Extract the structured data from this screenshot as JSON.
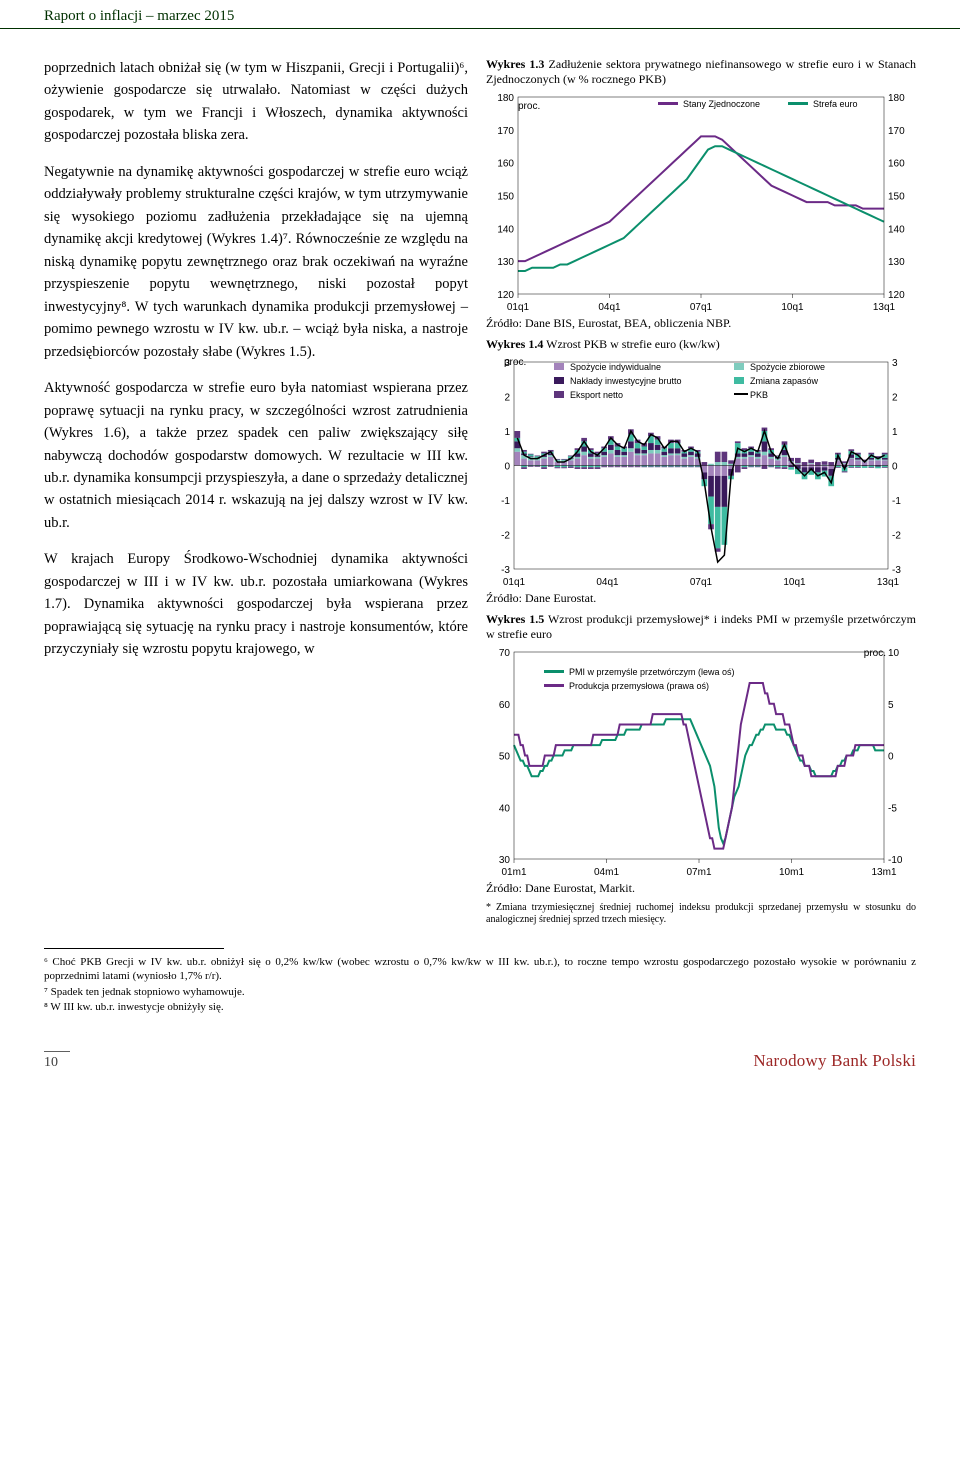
{
  "header": "Raport o inflacji – marzec 2015",
  "left": {
    "p1": "poprzednich latach obniżał się (w tym w Hiszpanii, Grecji i Portugalii)⁶, ożywienie gospodarcze się utrwalało. Natomiast w części dużych gospodarek, w tym we Francji i Włoszech, dynamika aktywności gospodarczej pozostała bliska zera.",
    "p2": "Negatywnie na dynamikę aktywności gospodarczej w strefie euro wciąż oddziaływały problemy strukturalne części krajów, w tym utrzymywanie się wysokiego poziomu zadłużenia przekładające się na ujemną dynamikę akcji kredytowej (Wykres 1.4)⁷. Równocześnie ze względu na niską dynamikę popytu zewnętrznego oraz brak oczekiwań na wyraźne przyspieszenie popytu wewnętrznego, niski pozostał popyt inwestycyjny⁸. W tych warunkach dynamika produkcji przemysłowej – pomimo pewnego wzrostu w IV kw. ub.r. – wciąż była niska, a nastroje przedsiębiorców pozostały słabe (Wykres 1.5).",
    "p3": "Aktywność gospodarcza w strefie euro była natomiast wspierana przez poprawę sytuacji na rynku pracy, w szczególności wzrost zatrudnienia (Wykres 1.6), a także przez spadek cen paliw zwiększający siłę nabywczą dochodów gospodarstw domowych. W rezultacie w III kw. ub.r. dynamika konsumpcji przyspieszyła, a dane o sprzedaży detalicznej w ostatnich miesiącach 2014 r. wskazują na jej dalszy wzrost w IV kw. ub.r.",
    "p4": "W krajach Europy Środkowo-Wschodniej dynamika aktywności gospodarczej w III i w IV kw. ub.r. pozostała umiarkowana (Wykres 1.7). Dynamika aktywności gospodarczej była wspierana przez poprawiającą się sytuację na rynku pracy i nastroje konsumentów, które przyczyniały się wzrostu popytu krajowego, w"
  },
  "chart13": {
    "caption_bold": "Wykres 1.3",
    "caption_rest": " Zadłużenie sektora prywatnego niefinansowego w strefie euro i w Stanach Zjednoczonych (w % rocznego PKB)",
    "unit_label": "proc.",
    "legend": [
      "Stany Zjednoczone",
      "Strefa euro"
    ],
    "colors": [
      "#6b2a86",
      "#0b8f6c"
    ],
    "ymin": 120,
    "ymax": 180,
    "ystep": 10,
    "xlabels": [
      "01q1",
      "04q1",
      "07q1",
      "10q1",
      "13q1"
    ],
    "n": 53,
    "series": {
      "us": [
        130,
        130,
        131,
        132,
        133,
        134,
        135,
        136,
        137,
        138,
        139,
        140,
        141,
        142,
        144,
        146,
        148,
        150,
        152,
        154,
        156,
        158,
        160,
        162,
        164,
        166,
        168,
        168,
        168,
        167,
        165,
        163,
        161,
        159,
        157,
        155,
        153,
        152,
        151,
        150,
        149,
        148,
        148,
        148,
        148,
        147,
        147,
        147,
        147,
        146,
        146,
        146,
        146
      ],
      "ez": [
        127,
        127,
        128,
        128,
        128,
        128,
        129,
        129,
        130,
        131,
        132,
        133,
        134,
        135,
        136,
        137,
        139,
        141,
        143,
        145,
        147,
        149,
        151,
        153,
        155,
        158,
        161,
        164,
        165,
        165,
        164,
        163,
        162,
        161,
        160,
        159,
        158,
        157,
        156,
        155,
        154,
        153,
        152,
        151,
        150,
        149,
        148,
        147,
        146,
        145,
        144,
        143,
        142
      ]
    },
    "source": "Źródło: Dane BIS, Eurostat, BEA, obliczenia NBP."
  },
  "chart14": {
    "caption_bold": "Wykres 1.4",
    "caption_rest": " Wzrost PKB w strefie euro (kw/kw)",
    "unit_label": "proc.",
    "legend": [
      "Spożycie indywidualne",
      "Spożycie zbiorowe",
      "Nakłady inwestycyjne brutto",
      "Zmiana zapasów",
      "Eksport netto",
      "PKB"
    ],
    "legend_colors": [
      "#a383bb",
      "#7fccbe",
      "#3a1a5c",
      "#3fbba1",
      "#5e357c",
      "#000000"
    ],
    "ymin": -3,
    "ymax": 3,
    "ystep": 1,
    "xlabels": [
      "01q1",
      "04q1",
      "07q1",
      "10q1",
      "13q1"
    ],
    "n": 56,
    "line": [
      0.8,
      0.3,
      0.2,
      0.2,
      0.3,
      0.4,
      0.1,
      0.1,
      0.2,
      0.4,
      0.7,
      0.4,
      0.3,
      0.5,
      0.8,
      0.6,
      0.5,
      1.0,
      0.7,
      0.6,
      0.9,
      0.8,
      0.5,
      0.7,
      0.7,
      0.4,
      0.5,
      0.4,
      -0.5,
      -1.8,
      -2.8,
      -2.6,
      -0.3,
      0.5,
      0.4,
      0.5,
      0.4,
      1.0,
      0.4,
      0.2,
      0.6,
      0.1,
      -0.1,
      -0.3,
      -0.1,
      -0.3,
      -0.2,
      -0.5,
      0.3,
      -0.1,
      0.4,
      0.3,
      0.1,
      0.3,
      0.2,
      0.3
    ],
    "stacks_pos": [
      [
        0.4,
        0.1,
        0.2,
        0.1,
        0.2
      ],
      [
        0.2,
        0.1,
        0.05,
        0.05,
        0.05
      ],
      [
        0.15,
        0.1,
        0.02,
        0.05,
        0.02
      ],
      [
        0.15,
        0.05,
        0.02,
        0.05,
        0.02
      ],
      [
        0.2,
        0.05,
        0.05,
        0.05,
        0.05
      ],
      [
        0.25,
        0.05,
        0.05,
        0.05,
        0.05
      ],
      [
        0.1,
        0.05,
        0.0,
        0.02,
        0.02
      ],
      [
        0.1,
        0.05,
        0.0,
        0.02,
        0.02
      ],
      [
        0.15,
        0.05,
        0.02,
        0.05,
        0.02
      ],
      [
        0.2,
        0.05,
        0.1,
        0.1,
        0.05
      ],
      [
        0.3,
        0.1,
        0.15,
        0.15,
        0.1
      ],
      [
        0.2,
        0.05,
        0.1,
        0.1,
        0.05
      ],
      [
        0.2,
        0.05,
        0.05,
        0.05,
        0.05
      ],
      [
        0.25,
        0.05,
        0.1,
        0.1,
        0.05
      ],
      [
        0.35,
        0.1,
        0.15,
        0.15,
        0.1
      ],
      [
        0.25,
        0.05,
        0.15,
        0.1,
        0.1
      ],
      [
        0.25,
        0.05,
        0.1,
        0.1,
        0.05
      ],
      [
        0.4,
        0.1,
        0.2,
        0.2,
        0.15
      ],
      [
        0.3,
        0.05,
        0.15,
        0.15,
        0.1
      ],
      [
        0.3,
        0.05,
        0.1,
        0.1,
        0.1
      ],
      [
        0.35,
        0.1,
        0.2,
        0.2,
        0.1
      ],
      [
        0.35,
        0.1,
        0.15,
        0.15,
        0.1
      ],
      [
        0.25,
        0.05,
        0.1,
        0.1,
        0.05
      ],
      [
        0.3,
        0.05,
        0.15,
        0.15,
        0.1
      ],
      [
        0.3,
        0.05,
        0.15,
        0.15,
        0.1
      ],
      [
        0.2,
        0.05,
        0.1,
        0.05,
        0.05
      ],
      [
        0.25,
        0.05,
        0.1,
        0.1,
        0.05
      ],
      [
        0.2,
        0.05,
        0.1,
        0.05,
        0.05
      ],
      [
        0.0,
        0.0,
        0.0,
        0.0,
        0.1
      ],
      [
        0.0,
        0.05,
        0.0,
        0.0,
        0.0
      ],
      [
        0.0,
        0.1,
        0.0,
        0.0,
        0.3
      ],
      [
        0.0,
        0.1,
        0.0,
        0.0,
        0.3
      ],
      [
        0.0,
        0.05,
        0.0,
        0.0,
        0.1
      ],
      [
        0.2,
        0.05,
        0.1,
        0.3,
        0.05
      ],
      [
        0.2,
        0.05,
        0.1,
        0.1,
        0.05
      ],
      [
        0.25,
        0.05,
        0.1,
        0.1,
        0.05
      ],
      [
        0.2,
        0.05,
        0.1,
        0.05,
        0.05
      ],
      [
        0.3,
        0.1,
        0.3,
        0.3,
        0.1
      ],
      [
        0.2,
        0.05,
        0.1,
        0.1,
        0.05
      ],
      [
        0.15,
        0.05,
        0.05,
        0.02,
        0.02
      ],
      [
        0.25,
        0.05,
        0.15,
        0.15,
        0.1
      ],
      [
        0.1,
        0.02,
        0.0,
        0.0,
        0.1
      ],
      [
        0.05,
        0.02,
        0.0,
        0.0,
        0.15
      ],
      [
        0.0,
        0.0,
        0.0,
        0.0,
        0.1
      ],
      [
        0.05,
        0.02,
        0.0,
        0.0,
        0.1
      ],
      [
        0.0,
        0.0,
        0.0,
        0.0,
        0.1
      ],
      [
        0.0,
        0.02,
        0.0,
        0.0,
        0.1
      ],
      [
        0.0,
        0.0,
        0.0,
        0.0,
        0.1
      ],
      [
        0.15,
        0.02,
        0.05,
        0.1,
        0.05
      ],
      [
        0.05,
        0.02,
        0.0,
        0.0,
        0.05
      ],
      [
        0.2,
        0.02,
        0.1,
        0.1,
        0.05
      ],
      [
        0.15,
        0.02,
        0.05,
        0.1,
        0.05
      ],
      [
        0.1,
        0.02,
        0.0,
        0.0,
        0.05
      ],
      [
        0.15,
        0.02,
        0.05,
        0.1,
        0.05
      ],
      [
        0.15,
        0.02,
        0.0,
        0.05,
        0.05
      ],
      [
        0.15,
        0.02,
        0.05,
        0.1,
        0.05
      ]
    ],
    "stacks_neg": [
      [
        0,
        0,
        0,
        0,
        0
      ],
      [
        0,
        0,
        0,
        0.05,
        0.05
      ],
      [
        0,
        0,
        0,
        0.02,
        0.02
      ],
      [
        0,
        0,
        0,
        0.02,
        0.02
      ],
      [
        0,
        0,
        0,
        0.05,
        0.05
      ],
      [
        0,
        0,
        0,
        0.02,
        0.02
      ],
      [
        0,
        0,
        0,
        0.05,
        0.03
      ],
      [
        0,
        0,
        0,
        0.05,
        0.03
      ],
      [
        0,
        0,
        0,
        0.03,
        0.04
      ],
      [
        0,
        0,
        0,
        0.05,
        0.05
      ],
      [
        0,
        0,
        0,
        0.05,
        0.05
      ],
      [
        0,
        0,
        0,
        0.05,
        0.05
      ],
      [
        0,
        0,
        0,
        0.05,
        0.05
      ],
      [
        0,
        0,
        0,
        0.02,
        0.03
      ],
      [
        0,
        0,
        0,
        0.02,
        0.03
      ],
      [
        0,
        0,
        0,
        0.02,
        0.03
      ],
      [
        0,
        0,
        0,
        0.02,
        0.03
      ],
      [
        0,
        0,
        0,
        0.02,
        0.03
      ],
      [
        0,
        0,
        0,
        0.02,
        0.03
      ],
      [
        0,
        0,
        0,
        0.03,
        0.02
      ],
      [
        0,
        0,
        0,
        0.03,
        0.02
      ],
      [
        0,
        0,
        0,
        0.03,
        0.02
      ],
      [
        0,
        0,
        0,
        0.03,
        0.02
      ],
      [
        0,
        0,
        0,
        0.03,
        0.02
      ],
      [
        0,
        0,
        0,
        0.03,
        0.02
      ],
      [
        0,
        0,
        0,
        0.03,
        0.02
      ],
      [
        0,
        0,
        0,
        0.03,
        0.02
      ],
      [
        0,
        0,
        0,
        0.03,
        0.02
      ],
      [
        0.2,
        0,
        0.2,
        0.2,
        0
      ],
      [
        0.3,
        0,
        0.6,
        0.8,
        0.15
      ],
      [
        0.3,
        0,
        0.9,
        1.2,
        0.1
      ],
      [
        0.3,
        0,
        0.9,
        1.1,
        0
      ],
      [
        0.1,
        0,
        0.2,
        0.1,
        0
      ],
      [
        0,
        0,
        0,
        0,
        0.2
      ],
      [
        0,
        0,
        0,
        0.05,
        0.05
      ],
      [
        0,
        0,
        0,
        0.03,
        0.02
      ],
      [
        0,
        0,
        0,
        0.03,
        0.02
      ],
      [
        0,
        0,
        0,
        0,
        0.1
      ],
      [
        0,
        0,
        0,
        0.03,
        0.02
      ],
      [
        0,
        0,
        0,
        0.05,
        0.04
      ],
      [
        0,
        0,
        0,
        0.05,
        0.05
      ],
      [
        0,
        0,
        0.05,
        0.07,
        0
      ],
      [
        0,
        0,
        0.1,
        0.15,
        0
      ],
      [
        0.05,
        0,
        0.15,
        0.2,
        0
      ],
      [
        0.05,
        0,
        0.1,
        0.12,
        0
      ],
      [
        0.05,
        0,
        0.15,
        0.2,
        0
      ],
      [
        0.05,
        0,
        0.1,
        0.17,
        0
      ],
      [
        0.1,
        0,
        0.2,
        0.3,
        0
      ],
      [
        0,
        0,
        0,
        0.05,
        0.02
      ],
      [
        0,
        0,
        0.05,
        0.12,
        0.03
      ],
      [
        0,
        0,
        0,
        0.05,
        0.02
      ],
      [
        0,
        0,
        0,
        0.05,
        0.02
      ],
      [
        0,
        0,
        0.02,
        0.05,
        0
      ],
      [
        0,
        0,
        0,
        0.05,
        0.02
      ],
      [
        0,
        0,
        0.03,
        0.05,
        0
      ],
      [
        0,
        0,
        0,
        0.05,
        0.02
      ]
    ],
    "source": "Źródło: Dane Eurostat."
  },
  "chart15": {
    "caption_bold": "Wykres 1.5",
    "caption_rest": " Wzrost produkcji przemysłowej* i indeks PMI w przemyśle przetwórczym w strefie euro",
    "unit_label": "proc.",
    "legend": [
      "PMI w przemyśle przetwórczym (lewa oś)",
      "Produkcja przemysłowa (prawa oś)"
    ],
    "colors": [
      "#0b8f6c",
      "#6b2a86"
    ],
    "leftmin": 30,
    "leftmax": 70,
    "leftstep": 10,
    "rightmin": -10,
    "rightmax": 10,
    "rightstep": 5,
    "xlabels": [
      "01m1",
      "04m1",
      "07m1",
      "10m1",
      "13m1"
    ],
    "n": 169,
    "pmi": [
      52,
      51,
      50,
      49,
      49,
      48,
      48,
      47,
      46,
      46,
      46,
      46,
      47,
      47,
      48,
      48,
      49,
      49,
      50,
      50,
      50,
      50,
      50,
      51,
      51,
      51,
      51,
      52,
      52,
      52,
      52,
      52,
      52,
      52,
      52,
      52,
      52,
      52,
      52,
      52,
      53,
      53,
      53,
      53,
      53,
      53,
      53,
      54,
      54,
      54,
      54,
      55,
      55,
      55,
      55,
      55,
      55,
      55,
      56,
      56,
      56,
      56,
      56,
      56,
      56,
      56,
      56,
      56,
      56,
      57,
      57,
      57,
      57,
      57,
      57,
      57,
      57,
      57,
      57,
      57,
      57,
      56,
      55,
      54,
      53,
      52,
      51,
      50,
      49,
      48,
      46,
      44,
      40,
      36,
      34,
      33,
      34,
      36,
      38,
      40,
      42,
      43,
      44,
      46,
      48,
      50,
      51,
      52,
      52,
      53,
      54,
      54,
      55,
      55,
      56,
      56,
      56,
      56,
      56,
      55,
      55,
      55,
      55,
      55,
      54,
      54,
      53,
      52,
      51,
      50,
      49,
      49,
      48,
      48,
      48,
      47,
      47,
      46,
      46,
      46,
      46,
      46,
      46,
      46,
      46,
      47,
      47,
      48,
      48,
      49,
      49,
      50,
      50,
      50,
      51,
      51,
      51,
      52,
      52,
      52,
      52,
      52,
      52,
      52,
      51,
      51,
      51,
      51,
      51
    ],
    "prod": [
      2,
      2,
      2,
      1,
      1,
      0,
      0,
      -1,
      -1,
      -1,
      -1,
      -1,
      -1,
      -1,
      0,
      0,
      0,
      0,
      0,
      1,
      1,
      1,
      1,
      1,
      1,
      1,
      1,
      1,
      1,
      1,
      1,
      1,
      1,
      1,
      1,
      1,
      2,
      2,
      2,
      2,
      2,
      2,
      2,
      2,
      2,
      2,
      2,
      2,
      3,
      3,
      3,
      3,
      3,
      3,
      3,
      3,
      3,
      3,
      3,
      3,
      3,
      3,
      3,
      4,
      4,
      4,
      4,
      4,
      4,
      4,
      4,
      4,
      4,
      4,
      4,
      4,
      4,
      3,
      3,
      2,
      1,
      0,
      -1,
      -2,
      -3,
      -4,
      -5,
      -6,
      -7,
      -8,
      -8,
      -9,
      -9,
      -9,
      -9,
      -9,
      -8,
      -7,
      -6,
      -5,
      -3,
      -1,
      1,
      3,
      4,
      5,
      6,
      7,
      7,
      7,
      7,
      7,
      7,
      7,
      6,
      6,
      5,
      5,
      5,
      4,
      4,
      4,
      4,
      3,
      3,
      3,
      2,
      1,
      1,
      0,
      0,
      0,
      -1,
      -1,
      -1,
      -2,
      -2,
      -2,
      -2,
      -2,
      -2,
      -2,
      -2,
      -2,
      -2,
      -2,
      -2,
      -1,
      -1,
      -1,
      -1,
      0,
      0,
      0,
      0,
      1,
      1,
      1,
      1,
      1,
      1,
      1,
      1,
      1,
      1,
      1,
      1,
      1,
      1
    ],
    "source": "Źródło: Dane Eurostat, Markit.",
    "note": "* Zmiana trzymiesięcznej średniej ruchomej indeksu produkcji sprzedanej przemysłu w stosunku do analogicznej średniej sprzed trzech miesięcy."
  },
  "footnotes": {
    "f6": "⁶ Choć PKB Grecji w IV kw. ub.r. obniżył się o 0,2% kw/kw (wobec wzrostu o 0,7% kw/kw w III kw. ub.r.), to roczne tempo wzrostu gospodarczego pozostało wysokie w porównaniu z poprzednimi latami (wyniosło 1,7% r/r).",
    "f7": "⁷ Spadek ten jednak stopniowo wyhamowuje.",
    "f8": "⁸ W III kw. ub.r. inwestycje obniżyły się."
  },
  "footer": {
    "page": "10",
    "brand": "Narodowy Bank Polski"
  }
}
